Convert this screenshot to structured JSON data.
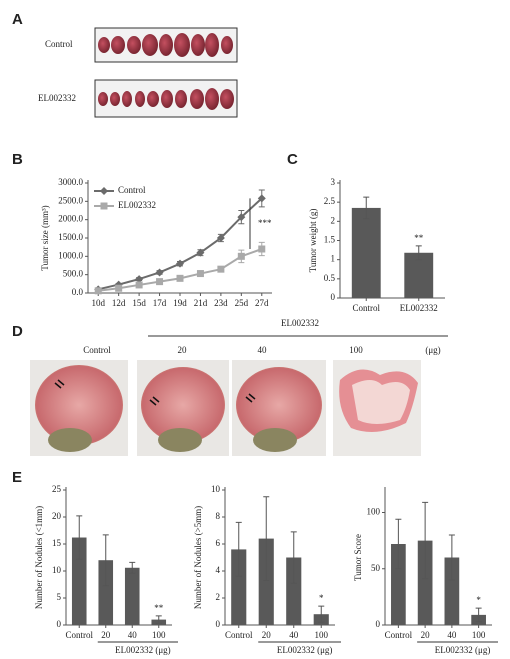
{
  "panel_a": {
    "label": "A",
    "rows": [
      "Control",
      "EL002332"
    ]
  },
  "panel_d": {
    "label": "D",
    "group": "EL002332",
    "columns": [
      "Control",
      "20",
      "40",
      "100"
    ],
    "unit": "(μg)"
  },
  "panel_labels": {
    "b": "B",
    "c": "C",
    "e": "E"
  },
  "chart_data": [
    {
      "type": "line",
      "ylabel": "Tumor size (mm³)",
      "categories": [
        "10d",
        "12d",
        "15d",
        "17d",
        "19d",
        "21d",
        "23d",
        "25d",
        "27d"
      ],
      "series": [
        {
          "name": "Control",
          "color": "#6b6b6b",
          "marker": "diamond",
          "values": [
            100,
            230,
            380,
            560,
            800,
            1100,
            1500,
            2070,
            2580
          ],
          "errors": [
            20,
            30,
            40,
            50,
            60,
            80,
            100,
            180,
            230
          ]
        },
        {
          "name": "EL002332",
          "color": "#a9a9a9",
          "marker": "square",
          "values": [
            60,
            130,
            220,
            310,
            400,
            530,
            650,
            1000,
            1200
          ],
          "errors": [
            15,
            20,
            25,
            30,
            40,
            50,
            60,
            170,
            180
          ]
        }
      ],
      "ylim": [
        0,
        3000
      ],
      "yticks": [
        {
          "value": 0,
          "label": "0.0"
        },
        {
          "value": 500,
          "label": "500.0"
        },
        {
          "value": 1000,
          "label": "1000.0"
        },
        {
          "value": 1500,
          "label": "1500.0"
        },
        {
          "value": 2000,
          "label": "2000.0"
        },
        {
          "value": 2500,
          "label": "2500.0"
        },
        {
          "value": 3000,
          "label": "3000.0"
        }
      ],
      "legend": "upper left",
      "annotation": "***"
    },
    {
      "type": "bar",
      "ylabel": "Tumor weight (g)",
      "color": "#595959",
      "categories": [
        "Control",
        "EL002332"
      ],
      "values": [
        2.35,
        1.18
      ],
      "errors": [
        0.28,
        0.18
      ],
      "annotations": [
        null,
        "**"
      ],
      "ylim": [
        0,
        3
      ],
      "yticks": [
        0,
        0.5,
        1,
        1.5,
        2,
        2.5,
        3
      ]
    },
    {
      "type": "bar",
      "ylabel": "Number of Nodules (<1mm)",
      "xlabel": "EL002332 (μg)",
      "color": "#595959",
      "categories": [
        "Control",
        "20",
        "40",
        "100"
      ],
      "values": [
        16.2,
        12,
        10.6,
        1
      ],
      "errors": [
        4,
        4.7,
        1,
        0.7
      ],
      "annotations": [
        null,
        null,
        null,
        "**"
      ],
      "ylim": [
        0,
        25
      ],
      "yticks": [
        0,
        5,
        10,
        15,
        20,
        25
      ]
    },
    {
      "type": "bar",
      "ylabel": "Number of Nodules (>5mm)",
      "xlabel": "EL002332 (μg)",
      "color": "#595959",
      "categories": [
        "Control",
        "20",
        "40",
        "100"
      ],
      "values": [
        5.6,
        6.4,
        5,
        0.8
      ],
      "errors": [
        2,
        3.1,
        1.9,
        0.6
      ],
      "annotations": [
        null,
        null,
        null,
        "*"
      ],
      "ylim": [
        0,
        10
      ],
      "yticks": [
        0,
        2,
        4,
        6,
        8,
        10
      ]
    },
    {
      "type": "bar",
      "ylabel": "Tumor Score",
      "xlabel": "EL002332 (μg)",
      "color": "#595959",
      "categories": [
        "Control",
        "20",
        "40",
        "100"
      ],
      "values": [
        72,
        75,
        60,
        9
      ],
      "errors": [
        22,
        34,
        20,
        6
      ],
      "annotations": [
        null,
        null,
        null,
        "*"
      ],
      "ylim": [
        0,
        120
      ],
      "yticks": [
        0,
        50,
        100
      ]
    }
  ]
}
